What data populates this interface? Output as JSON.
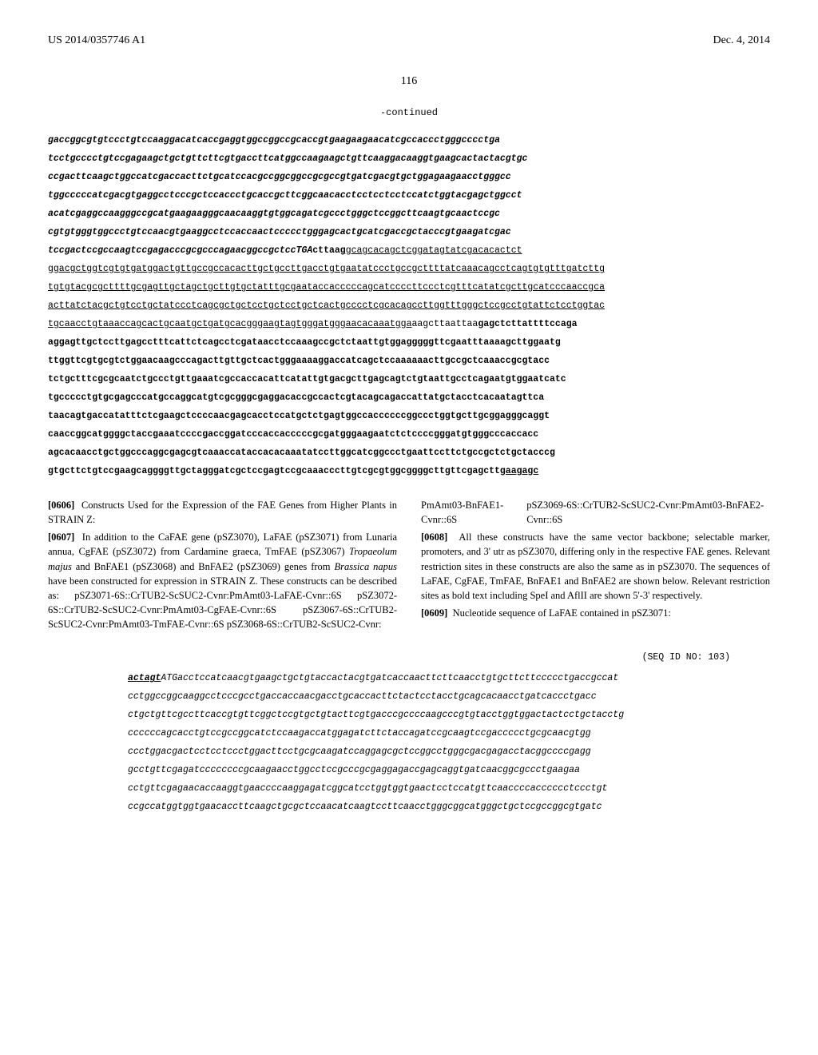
{
  "header": {
    "pub_number": "US 2014/0357746 A1",
    "pub_date": "Dec. 4, 2014"
  },
  "page_number": "116",
  "continued_label": "-continued",
  "seq_block_1": [
    {
      "text": "gaccggcgtgtccctgtccaaggacatcaccgaggtggccggccgcaccgtgaagaagaacatcgccaccctgggcccctga",
      "cls": "bold-italic"
    },
    {
      "text": "tcctgcccctgtccgagaagctgctgttcttcgtgaccttcatggccaagaagctgttcaaggacaaggtgaagcactactacgtgc",
      "cls": "bold-italic"
    },
    {
      "text": "ccgacttcaagctggccatcgaccacttctgcatccacgccggcggccgcgccgtgatcgacgtgctggagaagaacctgggcc",
      "cls": "bold-italic"
    },
    {
      "text": "tggcccccatcgacgtgaggcctcccgctccaccctgcaccgcttcggcaacacctcctcctcctccatctggtacgagctggcct",
      "cls": "bold-italic"
    },
    {
      "text": "acatcgaggccaagggccgcatgaagaagggcaacaaggtgtggcagatcgccctgggctccggcttcaagtgcaactccgc",
      "cls": "bold-italic"
    },
    {
      "text": "cgtgtgggtggccctgtccaacgtgaaggcctccaccaactccccctgggagcactgcatcgaccgctacccgtgaagatcgac",
      "cls": "bold-italic"
    },
    {
      "segments": [
        {
          "text": "tccgactccgccaagtccgagacccgcgcccagaacggccgctccTGA",
          "cls": "bold-italic"
        },
        {
          "text": "cttaag",
          "cls": "bold"
        },
        {
          "text": "gcagcacagctcggatagtatcgacacactct",
          "cls": "underline"
        }
      ]
    },
    {
      "text": "ggacgctggtcgtgtgatggactgttgccgccacacttgctgccttgacctgtgaatatccctgccgcttttatcaaacagcctcagtgtgtttgatcttg",
      "cls": "underline"
    },
    {
      "text": "tgtgtacgcgcttttgcgagttgctagctgcttgtgctatttgcgaataccacccccagcatccccttccctcgtttcatatcgcttgcatcccaaccgca",
      "cls": "underline"
    },
    {
      "text": "acttatctacgctgtcctgctatccctcagcgctgctcctgctcctgctcactgcccctcgcacagccttggtttgggctccgcctgtattctcctggtac",
      "cls": "underline"
    },
    {
      "segments": [
        {
          "text": "tgcaacctgtaaaccagcactgcaatgctgatgcacgggaagtagtgggatgggaacacaaatgga",
          "cls": "underline"
        },
        {
          "text": "aagcttaattaa",
          "cls": ""
        },
        {
          "text": "gagctcttattttccaga",
          "cls": "bold"
        }
      ]
    },
    {
      "text": "aggagttgctccttgagcctttcattctcagcctcgataacctccaaagccgctctaattgtggagggggttcgaatttaaaagcttggaatg",
      "cls": "bold"
    },
    {
      "text": "ttggttcgtgcgtctggaacaagcccagacttgttgctcactgggaaaaggaccatcagctccaaaaaacttgccgctcaaaccgcgtacc",
      "cls": "bold"
    },
    {
      "text": "tctgctttcgcgcaatctgccctgttgaaatcgccaccacattcatattgtgacgcttgagcagtctgtaattgcctcagaatgtggaatcatc",
      "cls": "bold"
    },
    {
      "text": "tgccccctgtgcgagcccatgccaggcatgtcgcgggcgaggacaccgccactcgtacagcagaccattatgctacctcacaatagttca",
      "cls": "bold"
    },
    {
      "text": "taacagtgaccatatttctcgaagctccccaacgagcacctccatgctctgagtggccaccccccggccctggtgcttgcggagggcaggt",
      "cls": "bold"
    },
    {
      "text": "caaccggcatggggctaccgaaatccccgaccggatcccaccacccccgcgatgggaagaatctctccccgggatgtgggcccaccacc",
      "cls": "bold"
    },
    {
      "text": "agcacaacctgctggcccaggcgagcgtcaaaccataccacacaaatatccttggcatcggccctgaattccttctgccgctctgctacccg",
      "cls": "bold"
    },
    {
      "segments": [
        {
          "text": "gtgcttctgtccgaagcaggggttgctagggatcgctccgagtccgcaaacccttgtcgcgtggcggggcttgttcgagctt",
          "cls": "bold"
        },
        {
          "text": "gaagagc",
          "cls": "bold underline"
        }
      ]
    }
  ],
  "left_col": {
    "p1_num": "[0606]",
    "p1_text": "Constructs Used for the Expression of the FAE Genes from Higher Plants in STRAIN Z:",
    "p2_num": "[0607]",
    "p2_text_1": "In addition to the CaFAE gene (pSZ3070), LaFAE (pSZ3071) from Lunaria annua, CgFAE (pSZ3072) from Cardamine graeca, TmFAE (pSZ3067) ",
    "p2_italic": "Tropaeolum majus",
    "p2_text_2": " and BnFAE1 (pSZ3068) and BnFAE2 (pSZ3069) genes from ",
    "p2_italic_2": "Brassica napus",
    "p2_text_3": " have been constructed for expression in STRAIN Z. These constructs can be described as: pSZ3071-6S::CrTUB2-ScSUC2-Cvnr:PmAmt03-LaFAE-Cvnr::6S pSZ3072-6S::CrTUB2-ScSUC2-Cvnr:PmAmt03-CgFAE-Cvnr::6S pSZ3067-6S::CrTUB2-ScSUC2-Cvnr:PmAmt03-TmFAE-Cvnr::6S pSZ3068-6S::CrTUB2-ScSUC2-Cvnr:"
  },
  "right_col": {
    "p0_text_pre": "PmAmt03-BnFAE1-Cvnr::6S",
    "p0_text_post": "pSZ3069-6S::CrTUB2-ScSUC2-Cvnr:PmAmt03-BnFAE2-Cvnr::6S",
    "p1_num": "[0608]",
    "p1_text": "All these constructs have the same vector backbone; selectable marker, promoters, and 3' utr as pSZ3070, differing only in the respective FAE genes. Relevant restriction sites in these constructs are also the same as in pSZ3070. The sequences of LaFAE, CgFAE, TmFAE, BnFAE1 and BnFAE2 are shown below. Relevant restriction sites as bold text including SpeI and AflII are shown 5'-3' respectively.",
    "p2_num": "[0609]",
    "p2_text": "Nucleotide sequence of LaFAE contained in pSZ3071:"
  },
  "seq_id": "(SEQ ID NO: 103)",
  "seq_block_2": [
    {
      "segments": [
        {
          "text": "actagt",
          "cls": "bold-italic-underline"
        },
        {
          "text": "ATGacctccatcaacgtgaagctgctgtaccactacgtgatcaccaacttcttcaacctgtgcttcttccccctgaccgccat",
          "cls": "italic"
        }
      ]
    },
    {
      "text": "cctggccggcaaggcctcccgcctgaccaccaacgacctgcaccacttctactcctacctgcagcacaacctgatcaccctgacc",
      "cls": "italic"
    },
    {
      "text": "ctgctgttcgccttcaccgtgttcggctccgtgctgtacttcgtgacccgccccaagcccgtgtacctggtggactactcctgctacctg",
      "cls": "italic"
    },
    {
      "text": "ccccccagcacctgtccgccggcatctccaagaccatggagatcttctaccagatccgcaagtccgaccccctgcgcaacgtgg",
      "cls": "italic"
    },
    {
      "text": "ccctggacgactcctcctccctggacttcctgcgcaagatccaggagcgctccggcctgggcgacgagacctacggccccgagg",
      "cls": "italic"
    },
    {
      "text": "gcctgttcgagatccccccccgcaagaacctggcctccgcccgcgaggagaccgagcaggtgatcaacggcgccctgaagaa",
      "cls": "italic"
    },
    {
      "text": "cctgttcgagaacaccaaggtgaaccccaaggagatcggcatcctggtggtgaactcctccatgttcaaccccacccccctccctgt",
      "cls": "italic"
    },
    {
      "text": "ccgccatggtggtgaacaccttcaagctgcgctccaacatcaagtccttcaacctgggcggcatgggctgctccgccggcgtgatc",
      "cls": "italic"
    }
  ]
}
